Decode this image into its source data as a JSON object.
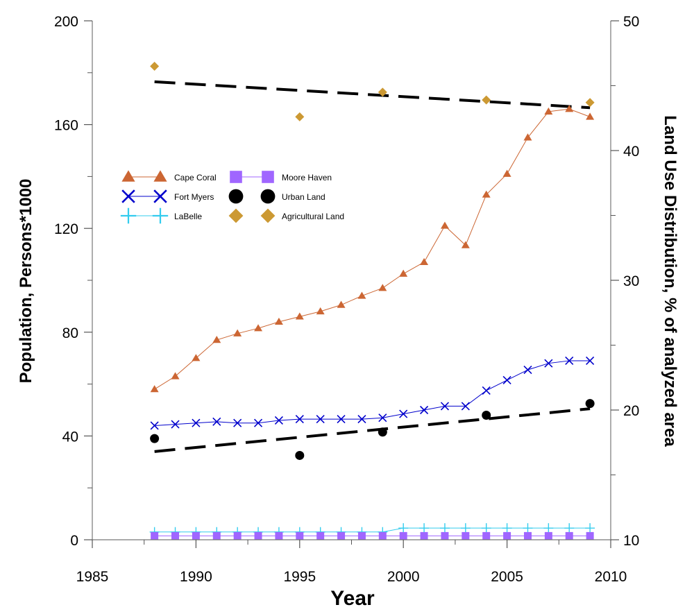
{
  "chart_data": {
    "type": "line",
    "xlabel": "Year",
    "ylabel": "Population, Persons*1000",
    "y2label": "Land Use Distribution, % of analyzed area",
    "xlim": [
      1985,
      2010
    ],
    "ylim": [
      0,
      200
    ],
    "y2lim": [
      10,
      50
    ],
    "xticks": [
      1985,
      1990,
      1995,
      2000,
      2005,
      2010
    ],
    "yticks": [
      0,
      40,
      80,
      120,
      160,
      200
    ],
    "y2ticks": [
      10,
      20,
      30,
      40,
      50
    ],
    "series": [
      {
        "name": "Cape Coral",
        "axis": "left",
        "marker": "triangle",
        "color": "#CC6633",
        "x": [
          1988,
          1989,
          1990,
          1991,
          1992,
          1993,
          1994,
          1995,
          1996,
          1997,
          1998,
          1999,
          2000,
          2001,
          2002,
          2003,
          2004,
          2005,
          2006,
          2007,
          2008,
          2009
        ],
        "y": [
          58,
          63,
          70,
          77,
          79.5,
          81.5,
          84,
          86,
          88,
          90.5,
          94,
          97,
          102.5,
          107,
          121,
          113.5,
          133,
          141,
          155,
          165,
          166,
          163
        ]
      },
      {
        "name": "Fort Myers",
        "axis": "left",
        "marker": "x",
        "color": "#0000CC",
        "x": [
          1988,
          1989,
          1990,
          1991,
          1992,
          1993,
          1994,
          1995,
          1996,
          1997,
          1998,
          1999,
          2000,
          2001,
          2002,
          2003,
          2004,
          2005,
          2006,
          2007,
          2008,
          2009
        ],
        "y": [
          44,
          44.5,
          45,
          45.5,
          45,
          45,
          46,
          46.5,
          46.5,
          46.5,
          46.5,
          47,
          48.5,
          50,
          51.5,
          51.5,
          57.5,
          61.5,
          65.5,
          68,
          69,
          69
        ]
      },
      {
        "name": "LaBelle",
        "axis": "left",
        "marker": "plus",
        "color": "#33CCEE",
        "x": [
          1988,
          1989,
          1990,
          1991,
          1992,
          1993,
          1994,
          1995,
          1996,
          1997,
          1998,
          1999,
          2000,
          2001,
          2002,
          2003,
          2004,
          2005,
          2006,
          2007,
          2008,
          2009
        ],
        "y": [
          3,
          3,
          3,
          3,
          3,
          3,
          3,
          3,
          3,
          3,
          3,
          3,
          4.5,
          4.5,
          4.5,
          4.5,
          4.5,
          4.5,
          4.5,
          4.5,
          4.5,
          4.5
        ]
      },
      {
        "name": "Moore Haven",
        "axis": "left",
        "marker": "square",
        "color": "#A066FF",
        "x": [
          1988,
          1989,
          1990,
          1991,
          1992,
          1993,
          1994,
          1995,
          1996,
          1997,
          1998,
          1999,
          2000,
          2001,
          2002,
          2003,
          2004,
          2005,
          2006,
          2007,
          2008,
          2009
        ],
        "y": [
          1.5,
          1.5,
          1.5,
          1.5,
          1.5,
          1.5,
          1.5,
          1.5,
          1.5,
          1.5,
          1.5,
          1.5,
          1.5,
          1.5,
          1.5,
          1.5,
          1.5,
          1.5,
          1.5,
          1.5,
          1.5,
          1.5
        ]
      },
      {
        "name": "Urban Land",
        "axis": "right",
        "marker": "circle",
        "color": "#000000",
        "x": [
          1988,
          1995,
          1999,
          2004,
          2009
        ],
        "y": [
          17.8,
          16.5,
          18.3,
          19.6,
          20.5
        ],
        "trend": [
          [
            1988,
            16.8
          ],
          [
            2009,
            20.1
          ]
        ]
      },
      {
        "name": "Agricultural Land",
        "axis": "right",
        "marker": "diamond",
        "color": "#CC9933",
        "x": [
          1988,
          1995,
          1999,
          2004,
          2009
        ],
        "y": [
          46.5,
          42.6,
          44.5,
          43.9,
          43.7
        ],
        "trend": [
          [
            1988,
            45.3
          ],
          [
            2009,
            43.3
          ]
        ]
      }
    ],
    "legend_position": "upper-left"
  }
}
